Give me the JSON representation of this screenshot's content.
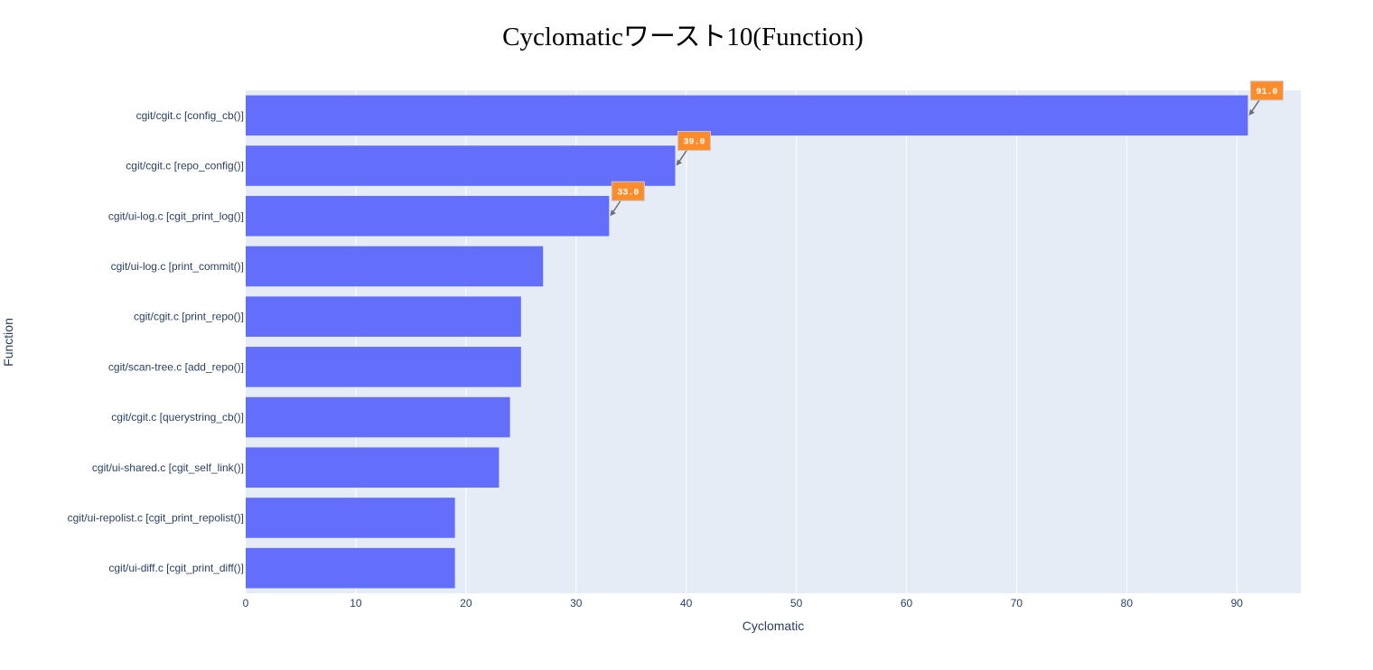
{
  "chart_data": {
    "type": "bar",
    "orientation": "horizontal",
    "title": "Cyclomaticワースト10(Function)",
    "xlabel": "Cyclomatic",
    "ylabel": "Function",
    "xlim": [
      0,
      95.8
    ],
    "x_ticks": [
      0,
      10,
      20,
      30,
      40,
      50,
      60,
      70,
      80,
      90
    ],
    "grid": true,
    "categories": [
      "cgit/cgit.c [config_cb()]",
      "cgit/cgit.c [repo_config()]",
      "cgit/ui-log.c [cgit_print_log()]",
      "cgit/ui-log.c [print_commit()]",
      "cgit/cgit.c [print_repo()]",
      "cgit/scan-tree.c [add_repo()]",
      "cgit/cgit.c [querystring_cb()]",
      "cgit/ui-shared.c [cgit_self_link()]",
      "cgit/ui-repolist.c [cgit_print_repolist()]",
      "cgit/ui-diff.c [cgit_print_diff()]"
    ],
    "values": [
      91,
      39,
      33,
      27,
      25,
      25,
      24,
      23,
      19,
      19
    ],
    "annotations": [
      {
        "category_index": 0,
        "value": 91,
        "text": "91.0"
      },
      {
        "category_index": 1,
        "value": 39,
        "text": "39.0"
      },
      {
        "category_index": 2,
        "value": 33,
        "text": "33.0"
      }
    ],
    "colors": {
      "bar": "#636efa",
      "plot_background": "#e5ecf6",
      "grid": "#ffffff",
      "annotation_fill": "#ff8c2a",
      "annotation_border": "#c7c7c7",
      "annotation_arrow": "#6f6f6f",
      "text": "#2a3f5f"
    }
  }
}
